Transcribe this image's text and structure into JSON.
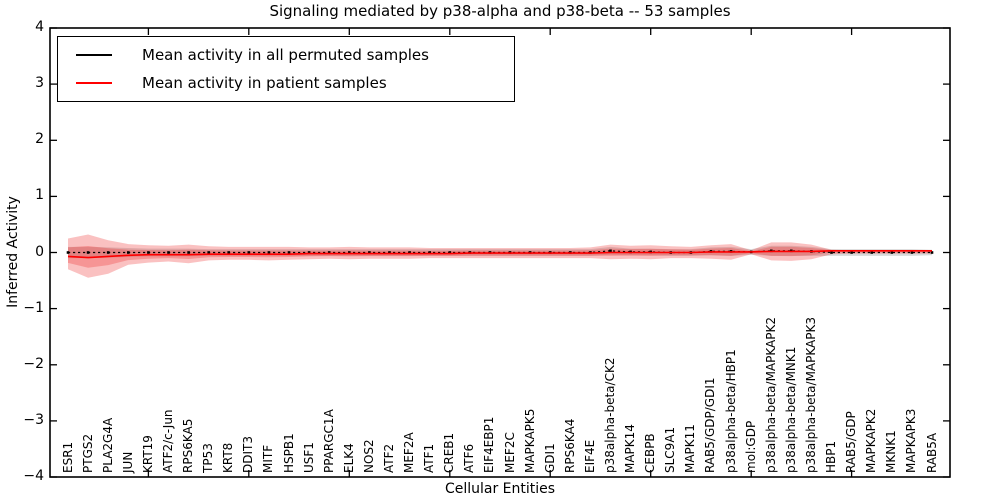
{
  "chart_data": {
    "type": "line",
    "title": "Signaling mediated by p38-alpha and p38-beta -- 53 samples",
    "xlabel": "Cellular Entities",
    "ylabel": "Inferred Activity",
    "ylim": [
      -4,
      4
    ],
    "yticks": [
      -4,
      -3,
      -2,
      -1,
      0,
      1,
      2,
      3,
      4
    ],
    "x_major_tick_indices": [
      4,
      9,
      14,
      19,
      24,
      29,
      34,
      39
    ],
    "grid": false,
    "background": "#ffffff",
    "categories": [
      "ESR1",
      "PTGS2",
      "PLA2G4A",
      "JUN",
      "KRT19",
      "ATF2/c-Jun",
      "RPS6KA5",
      "TP53",
      "KRT8",
      "DDIT3",
      "MITF",
      "HSPB1",
      "USF1",
      "PPARGC1A",
      "ELK4",
      "NOS2",
      "ATF2",
      "MEF2A",
      "ATF1",
      "CREB1",
      "ATF6",
      "EIF4EBP1",
      "MEF2C",
      "MAPKAPK5",
      "GDI1",
      "RPS6KA4",
      "EIF4E",
      "p38alpha-beta/CK2",
      "MAPK14",
      "CEBPB",
      "SLC9A1",
      "MAPK11",
      "RAB5/GDP/GDI1",
      "p38alpha-beta/HBP1",
      "mol:GDP",
      "p38alpha-beta/MAPKAPK2",
      "p38alpha-beta/MNK1",
      "p38alpha-beta/MAPKAPK3",
      "HBP1",
      "RAB5/GDP",
      "MAPKAPK2",
      "MKNK1",
      "MAPKAPK3",
      "RAB5A"
    ],
    "legend": {
      "position": "upper left",
      "entries": [
        {
          "label": "Mean activity in all permuted samples",
          "color": "#000000"
        },
        {
          "label": "Mean activity in patient samples",
          "color": "#ff0000"
        }
      ]
    },
    "series": [
      {
        "name": "Mean activity in all permuted samples",
        "color": "#000000",
        "style": "dotted-with-square-markers",
        "values": [
          0,
          0,
          0,
          0,
          0,
          0,
          0,
          0,
          0,
          0,
          0,
          0,
          0,
          0,
          0,
          0,
          0,
          0,
          0,
          0,
          0,
          0,
          0,
          0,
          0,
          0,
          0,
          0.03,
          0.01,
          0.01,
          0,
          0,
          0.02,
          0.02,
          0.01,
          0.03,
          0.03,
          0.02,
          0,
          0,
          0,
          0,
          0,
          0
        ]
      },
      {
        "name": "Mean activity in patient samples",
        "color": "#ff0000",
        "style": "solid",
        "values": [
          -0.07,
          -0.09,
          -0.07,
          -0.05,
          -0.04,
          -0.04,
          -0.04,
          -0.03,
          -0.03,
          -0.03,
          -0.03,
          -0.03,
          -0.02,
          -0.02,
          -0.02,
          -0.02,
          -0.02,
          -0.02,
          -0.02,
          -0.02,
          -0.01,
          -0.01,
          -0.01,
          -0.01,
          -0.01,
          -0.01,
          -0.01,
          0,
          0,
          0,
          0,
          0,
          0.01,
          0.01,
          0.01,
          0.02,
          0.02,
          0.02,
          0.03,
          0.03,
          0.03,
          0.03,
          0.03,
          0.03
        ]
      }
    ],
    "bands": {
      "permuted": {
        "color": "rgba(0,0,0,0.15)",
        "halfwidth": [
          0.1,
          0.1,
          0.09,
          0.08,
          0.07,
          0.07,
          0.07,
          0.06,
          0.06,
          0.06,
          0.06,
          0.06,
          0.06,
          0.06,
          0.06,
          0.06,
          0.06,
          0.06,
          0.06,
          0.06,
          0.06,
          0.06,
          0.06,
          0.06,
          0.06,
          0.06,
          0.06,
          0.07,
          0.06,
          0.06,
          0.06,
          0.06,
          0.07,
          0.08,
          0.05,
          0.09,
          0.09,
          0.08,
          0.06,
          0.06,
          0.06,
          0.06,
          0.06,
          0.05
        ]
      },
      "patient_outer": {
        "color": "rgba(238,51,51,0.30)",
        "upper": [
          0.25,
          0.32,
          0.22,
          0.15,
          0.13,
          0.12,
          0.14,
          0.11,
          0.1,
          0.1,
          0.1,
          0.1,
          0.09,
          0.09,
          0.1,
          0.09,
          0.09,
          0.09,
          0.08,
          0.08,
          0.08,
          0.08,
          0.08,
          0.08,
          0.08,
          0.08,
          0.09,
          0.14,
          0.12,
          0.13,
          0.11,
          0.1,
          0.13,
          0.15,
          0.04,
          0.18,
          0.18,
          0.14,
          0.05,
          0.04,
          0.04,
          0.04,
          0.04,
          0.04
        ],
        "lower": [
          -0.3,
          -0.45,
          -0.38,
          -0.22,
          -0.18,
          -0.16,
          -0.19,
          -0.14,
          -0.13,
          -0.13,
          -0.14,
          -0.13,
          -0.12,
          -0.11,
          -0.12,
          -0.11,
          -0.11,
          -0.11,
          -0.1,
          -0.1,
          -0.1,
          -0.1,
          -0.1,
          -0.1,
          -0.1,
          -0.1,
          -0.1,
          -0.12,
          -0.11,
          -0.12,
          -0.1,
          -0.1,
          -0.11,
          -0.13,
          -0.03,
          -0.14,
          -0.15,
          -0.12,
          -0.03,
          -0.02,
          -0.02,
          -0.02,
          -0.02,
          -0.02
        ]
      },
      "inner_band_fraction": 0.5
    }
  }
}
